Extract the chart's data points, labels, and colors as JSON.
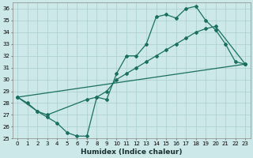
{
  "xlabel": "Humidex (Indice chaleur)",
  "xlim": [
    -0.5,
    23.5
  ],
  "ylim": [
    25,
    36.5
  ],
  "yticks": [
    25,
    26,
    27,
    28,
    29,
    30,
    31,
    32,
    33,
    34,
    35,
    36
  ],
  "xticks": [
    0,
    1,
    2,
    3,
    4,
    5,
    6,
    7,
    8,
    9,
    10,
    11,
    12,
    13,
    14,
    15,
    16,
    17,
    18,
    19,
    20,
    21,
    22,
    23
  ],
  "bg_color": "#cce8e8",
  "grid_color": "#aacece",
  "line_color": "#1a7060",
  "line1_x": [
    0,
    1,
    2,
    3,
    4,
    5,
    6,
    7,
    8,
    9,
    10,
    11,
    12,
    13,
    14,
    15,
    16,
    17,
    18,
    19,
    20,
    21,
    22,
    23
  ],
  "line1_y": [
    28.5,
    28.0,
    27.3,
    26.8,
    26.3,
    25.5,
    25.2,
    25.2,
    28.5,
    28.3,
    30.5,
    32.0,
    32.0,
    33.0,
    35.3,
    35.5,
    35.2,
    36.0,
    36.2,
    35.0,
    34.2,
    33.0,
    31.5,
    31.3
  ],
  "line2_x": [
    0,
    2,
    3,
    7,
    8,
    9,
    10,
    11,
    12,
    13,
    14,
    15,
    16,
    17,
    18,
    19,
    20,
    23
  ],
  "line2_y": [
    28.5,
    27.3,
    27.0,
    28.3,
    28.5,
    29.0,
    30.0,
    30.5,
    31.0,
    31.5,
    32.0,
    32.5,
    33.0,
    33.5,
    34.0,
    34.3,
    34.5,
    31.3
  ],
  "line3_x": [
    0,
    23
  ],
  "line3_y": [
    28.5,
    31.3
  ]
}
